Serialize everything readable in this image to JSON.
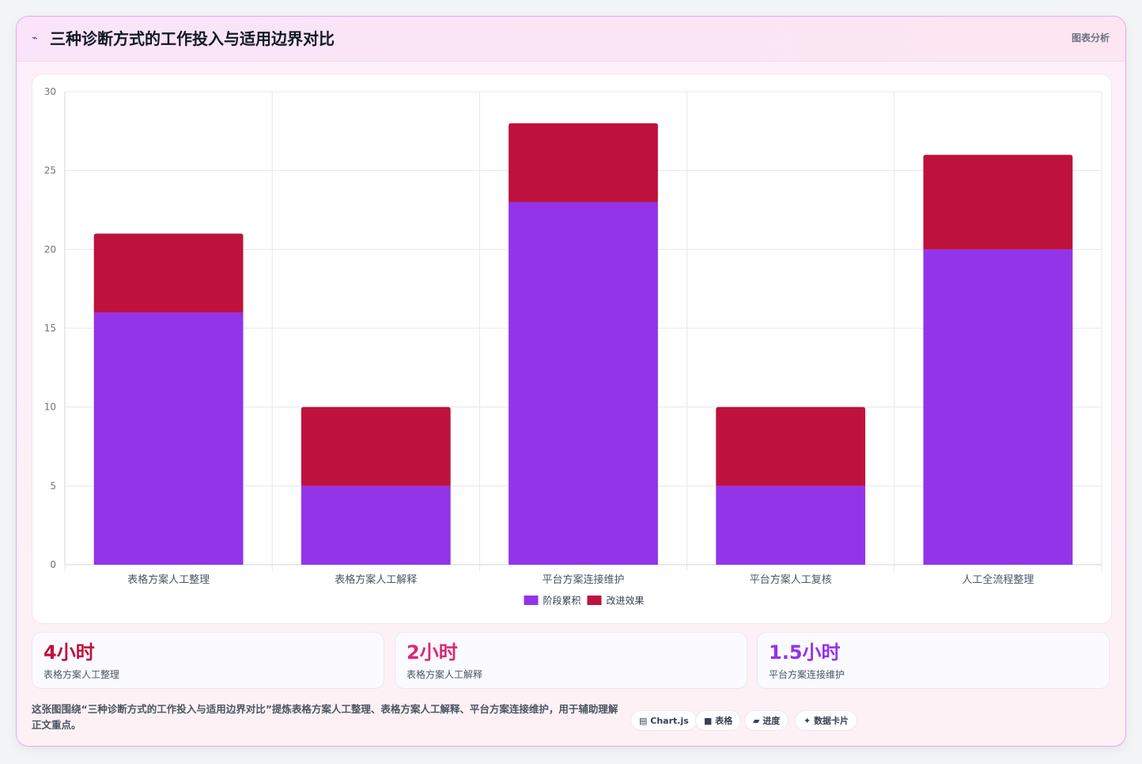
{
  "header": {
    "icon": "chart-line-icon",
    "title": "三种诊断方式的工作投入与适用边界对比",
    "right_label": "图表分析"
  },
  "chart_data": {
    "type": "bar",
    "stacked": true,
    "categories": [
      "表格方案人工整理",
      "表格方案人工解释",
      "平台方案连接维护",
      "平台方案人工复核",
      "人工全流程整理"
    ],
    "series": [
      {
        "name": "阶段累积",
        "values": [
          16,
          5,
          23,
          5,
          20
        ],
        "color": "#9333ea"
      },
      {
        "name": "改进效果",
        "values": [
          5,
          5,
          5,
          5,
          6
        ],
        "color": "#be123c"
      }
    ],
    "ylim": [
      0,
      30
    ],
    "yticks": [
      0,
      5,
      10,
      15,
      20,
      25,
      30
    ],
    "grid": true,
    "legend": "bottom"
  },
  "stats": [
    {
      "value": "4小时",
      "label": "表格方案人工整理",
      "color": "#be123c"
    },
    {
      "value": "2小时",
      "label": "表格方案人工解释",
      "color": "#db2777"
    },
    {
      "value": "1.5小时",
      "label": "平台方案连接维护",
      "color": "#9333ea"
    }
  ],
  "footer": {
    "text": "这张图围绕“三种诊断方式的工作投入与适用边界对比”提炼表格方案人工整理、表格方案人工解释、平台方案连接维护，用于辅助理解正文重点。",
    "tags": [
      {
        "icon": "▤",
        "label": "Chart.js"
      },
      {
        "icon": "■",
        "label": "表格"
      },
      {
        "icon": "▰",
        "label": "进度"
      },
      {
        "icon": "✦",
        "label": "数据卡片"
      }
    ]
  }
}
